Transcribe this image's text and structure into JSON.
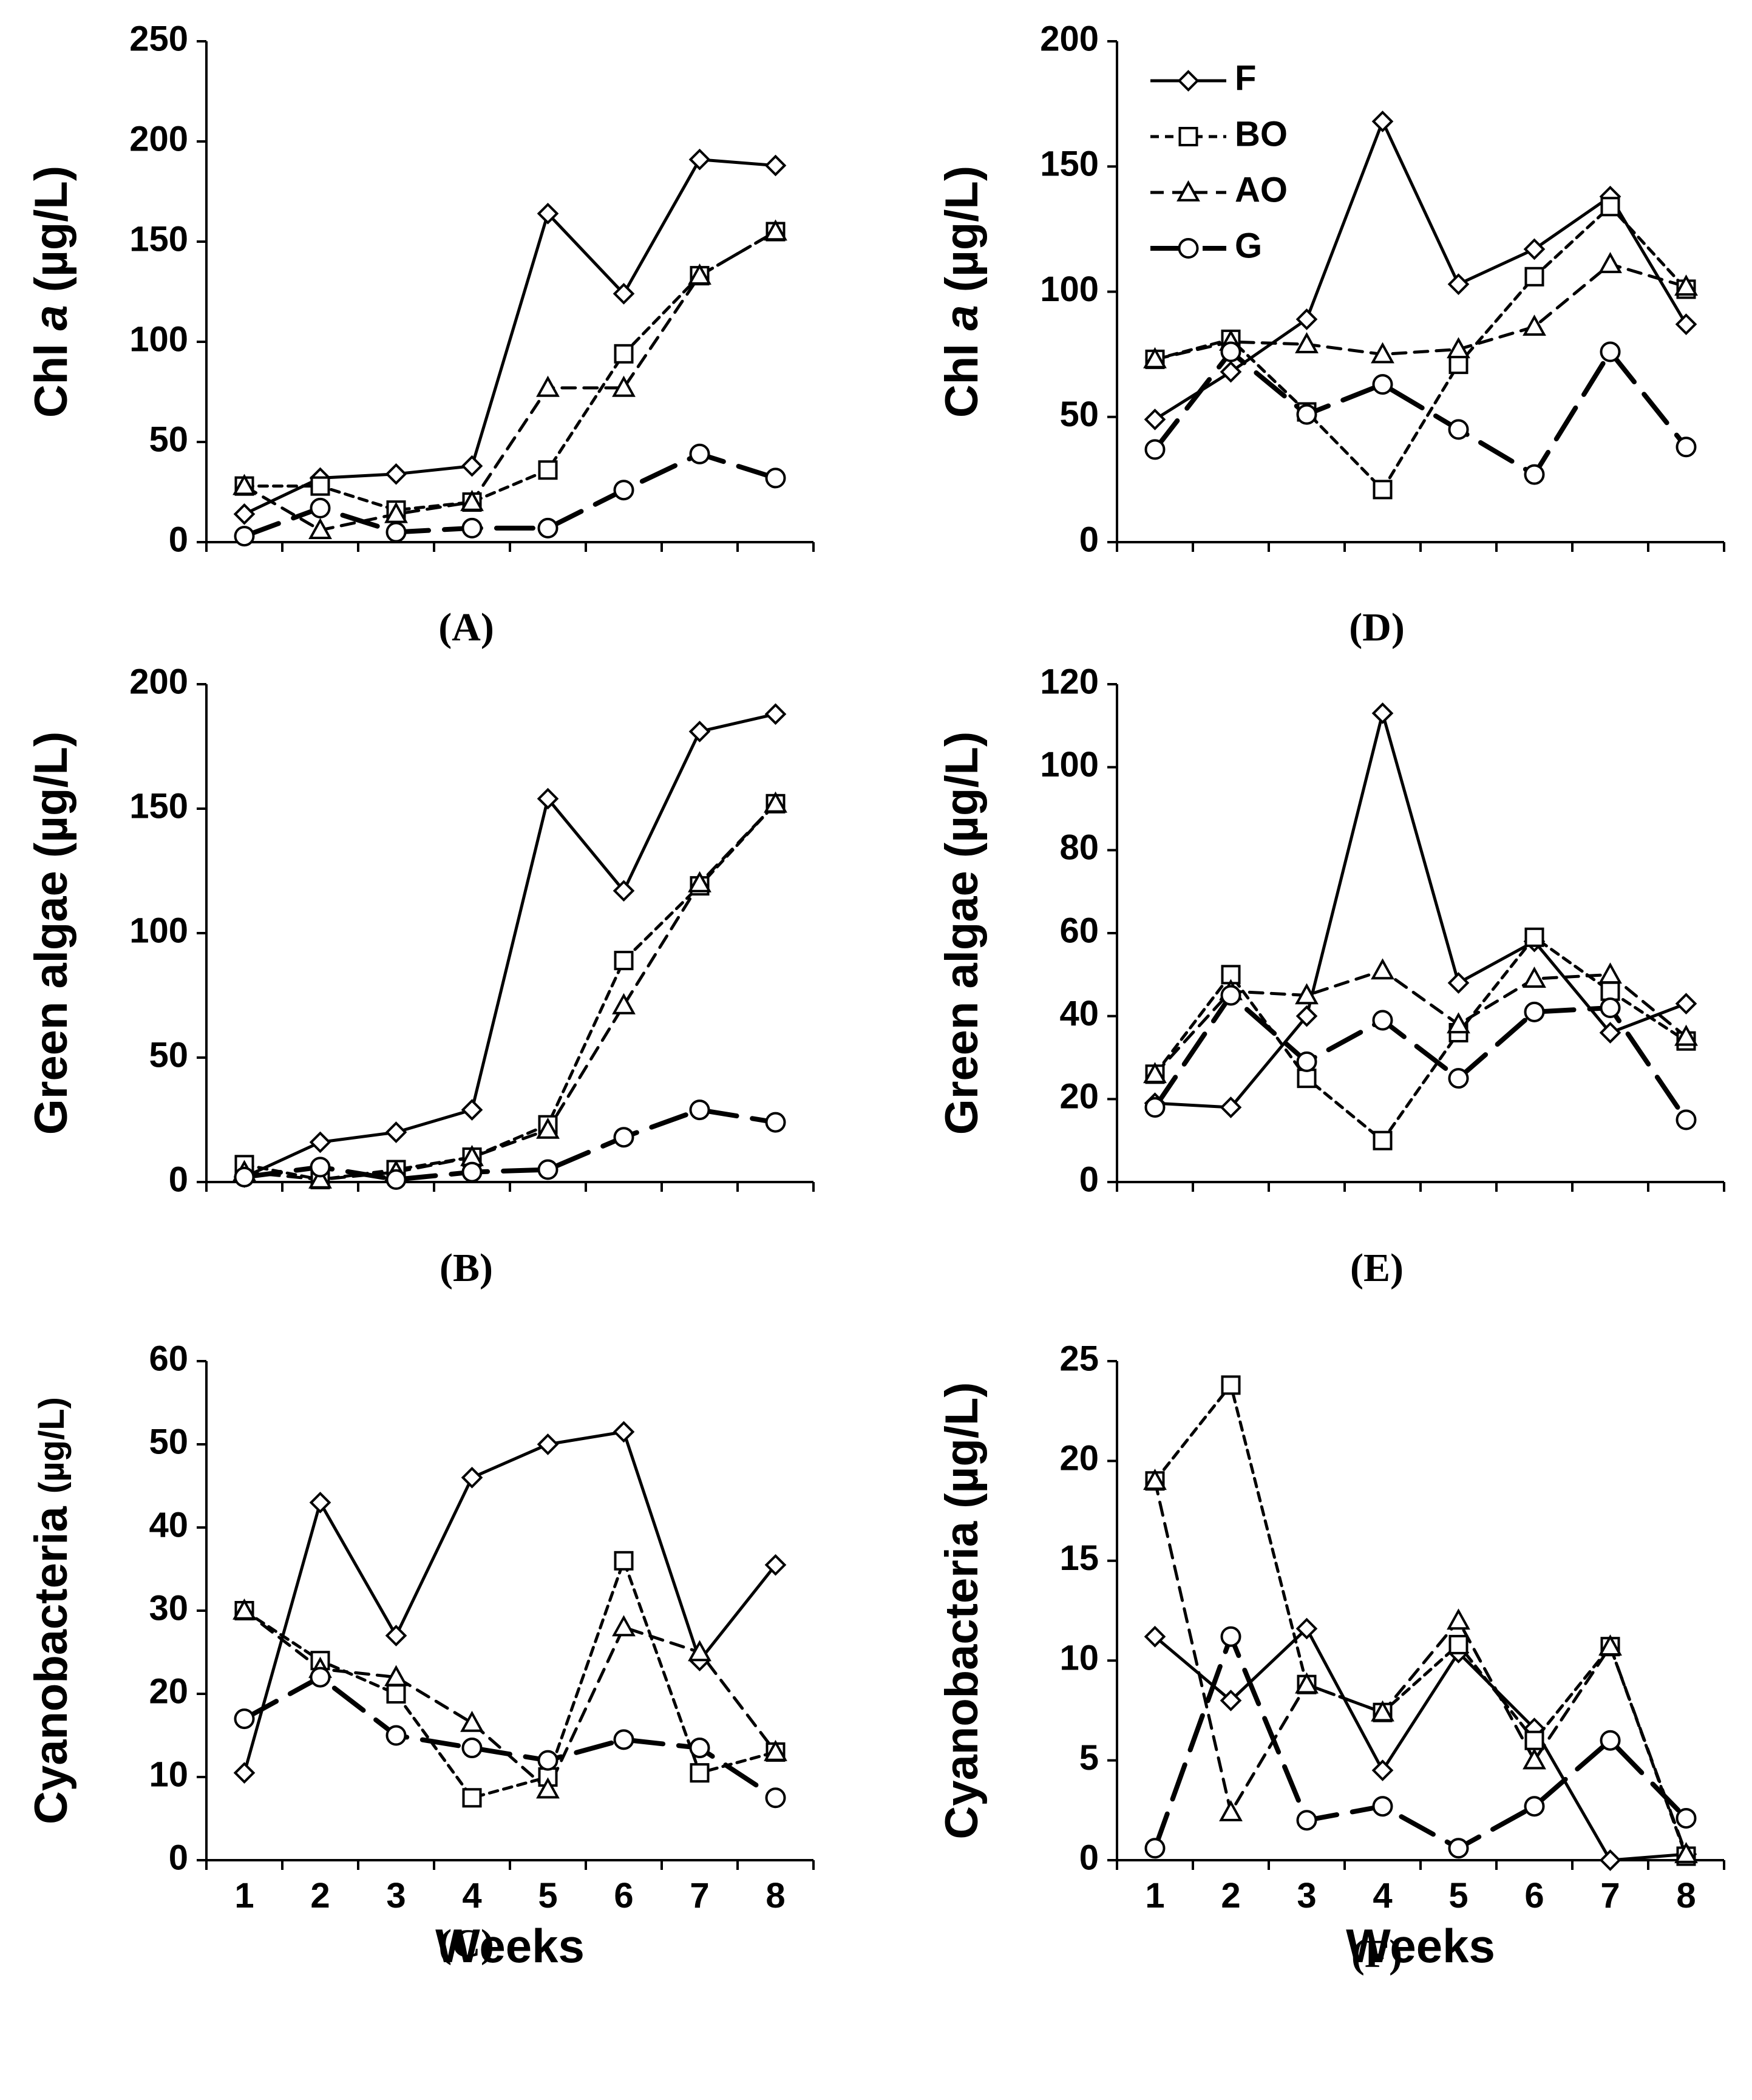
{
  "figure": {
    "legend": [
      {
        "name": "F",
        "label": "F"
      },
      {
        "name": "BO",
        "label": "BO"
      },
      {
        "name": "AO",
        "label": "AO"
      },
      {
        "name": "G",
        "label": "G"
      }
    ]
  },
  "chart_data": [
    {
      "type": "line",
      "panel_label": "(A)",
      "title": "",
      "ylabel_pre": "Chl ",
      "ylabel_italic": "a",
      "ylabel_post": " (µg/L)",
      "xlabel": "",
      "x": [
        1,
        2,
        3,
        4,
        5,
        6,
        7,
        8
      ],
      "xticklabels": [],
      "ylim": [
        0,
        250
      ],
      "yticks": [
        0,
        50,
        100,
        150,
        200,
        250
      ],
      "series": [
        {
          "name": "F",
          "values": [
            14,
            32,
            34,
            38,
            164,
            124,
            191,
            188
          ]
        },
        {
          "name": "BO",
          "values": [
            28,
            28,
            16,
            20,
            36,
            94,
            133,
            155
          ]
        },
        {
          "name": "AO",
          "values": [
            28,
            6,
            14,
            20,
            77,
            77,
            133,
            155
          ]
        },
        {
          "name": "G",
          "values": [
            3,
            17,
            5,
            7,
            7,
            26,
            44,
            32
          ]
        }
      ]
    },
    {
      "type": "line",
      "panel_label": "(B)",
      "title": "",
      "ylabel_pre": "Green algae (µg/L)",
      "ylabel_italic": "",
      "ylabel_post": "",
      "xlabel": "",
      "x": [
        1,
        2,
        3,
        4,
        5,
        6,
        7,
        8
      ],
      "xticklabels": [],
      "ylim": [
        0,
        200
      ],
      "yticks": [
        0,
        50,
        100,
        150,
        200
      ],
      "series": [
        {
          "name": "F",
          "values": [
            2,
            16,
            20,
            29,
            154,
            117,
            181,
            188
          ]
        },
        {
          "name": "BO",
          "values": [
            7,
            1,
            5,
            10,
            23,
            89,
            119,
            152
          ]
        },
        {
          "name": "AO",
          "values": [
            4,
            1,
            4,
            10,
            21,
            71,
            120,
            152
          ]
        },
        {
          "name": "G",
          "values": [
            2,
            6,
            1,
            4,
            5,
            18,
            29,
            24
          ]
        }
      ]
    },
    {
      "type": "line",
      "panel_label": "(C)",
      "title": "",
      "ylabel_pre": "Cyanobacteria ",
      "ylabel_italic": "",
      "ylabel_post": "",
      "ylabel_small": "(µg/L)",
      "xlabel": "Weeks",
      "x": [
        1,
        2,
        3,
        4,
        5,
        6,
        7,
        8
      ],
      "xticklabels": [
        "1",
        "2",
        "3",
        "4",
        "5",
        "6",
        "7",
        "8"
      ],
      "ylim": [
        0,
        60
      ],
      "yticks": [
        0,
        10,
        20,
        30,
        40,
        50,
        60
      ],
      "series": [
        {
          "name": "F",
          "values": [
            10.5,
            43,
            27,
            46,
            50,
            51.5,
            24,
            35.5
          ]
        },
        {
          "name": "BO",
          "values": [
            30,
            24,
            20,
            7.5,
            10,
            36,
            10.5,
            13
          ]
        },
        {
          "name": "AO",
          "values": [
            30,
            23,
            22,
            16.5,
            8.5,
            28,
            25,
            13
          ]
        },
        {
          "name": "G",
          "values": [
            17,
            22,
            15,
            13.5,
            12,
            14.5,
            13.5,
            7.5
          ]
        }
      ]
    },
    {
      "type": "line",
      "panel_label": "(D)",
      "title": "",
      "ylabel_pre": "Chl ",
      "ylabel_italic": "a",
      "ylabel_post": " (µg/L)",
      "xlabel": "",
      "x": [
        1,
        2,
        3,
        4,
        5,
        6,
        7,
        8
      ],
      "xticklabels": [],
      "ylim": [
        0,
        200
      ],
      "yticks": [
        0,
        50,
        100,
        150,
        200
      ],
      "series": [
        {
          "name": "F",
          "values": [
            49,
            68,
            89,
            168,
            103,
            117,
            138,
            87
          ]
        },
        {
          "name": "BO",
          "values": [
            73,
            81,
            52,
            21,
            71,
            106,
            134,
            101
          ]
        },
        {
          "name": "AO",
          "values": [
            73,
            80,
            79,
            75,
            77,
            86,
            111,
            102
          ]
        },
        {
          "name": "G",
          "values": [
            37,
            76,
            51,
            63,
            45,
            27,
            76,
            38
          ]
        }
      ]
    },
    {
      "type": "line",
      "panel_label": "(E)",
      "title": "",
      "ylabel_pre": "Green algae (µg/L)",
      "ylabel_italic": "",
      "ylabel_post": "",
      "xlabel": "",
      "x": [
        1,
        2,
        3,
        4,
        5,
        6,
        7,
        8
      ],
      "xticklabels": [],
      "ylim": [
        0,
        120
      ],
      "yticks": [
        0,
        20,
        40,
        60,
        80,
        100,
        120
      ],
      "series": [
        {
          "name": "F",
          "values": [
            19,
            18,
            40,
            113,
            48,
            58,
            36,
            43
          ]
        },
        {
          "name": "BO",
          "values": [
            26,
            50,
            25,
            10,
            36,
            59,
            46,
            34
          ]
        },
        {
          "name": "AO",
          "values": [
            26,
            46,
            45,
            51,
            38,
            49,
            50,
            35
          ]
        },
        {
          "name": "G",
          "values": [
            18,
            45,
            29,
            39,
            25,
            41,
            42,
            15
          ]
        }
      ]
    },
    {
      "type": "line",
      "panel_label": "(F)",
      "title": "",
      "ylabel_pre": "Cyanobacteria (µg/L)",
      "ylabel_italic": "",
      "ylabel_post": "",
      "xlabel": "Weeks",
      "x": [
        1,
        2,
        3,
        4,
        5,
        6,
        7,
        8
      ],
      "xticklabels": [
        "1",
        "2",
        "3",
        "4",
        "5",
        "6",
        "7",
        "8"
      ],
      "ylim": [
        0,
        25
      ],
      "yticks": [
        0,
        5,
        10,
        15,
        20,
        25
      ],
      "series": [
        {
          "name": "F",
          "values": [
            11.2,
            8,
            11.6,
            4.5,
            10.4,
            6.6,
            0,
            0.3
          ]
        },
        {
          "name": "BO",
          "values": [
            19,
            23.8,
            8.8,
            7.4,
            10.8,
            6,
            10.7,
            0.2
          ]
        },
        {
          "name": "AO",
          "values": [
            19,
            2.4,
            8.8,
            7.4,
            12,
            5,
            10.7,
            0.3
          ]
        },
        {
          "name": "G",
          "values": [
            0.6,
            11.2,
            2,
            2.7,
            0.6,
            2.7,
            6,
            2.1
          ]
        }
      ]
    }
  ]
}
